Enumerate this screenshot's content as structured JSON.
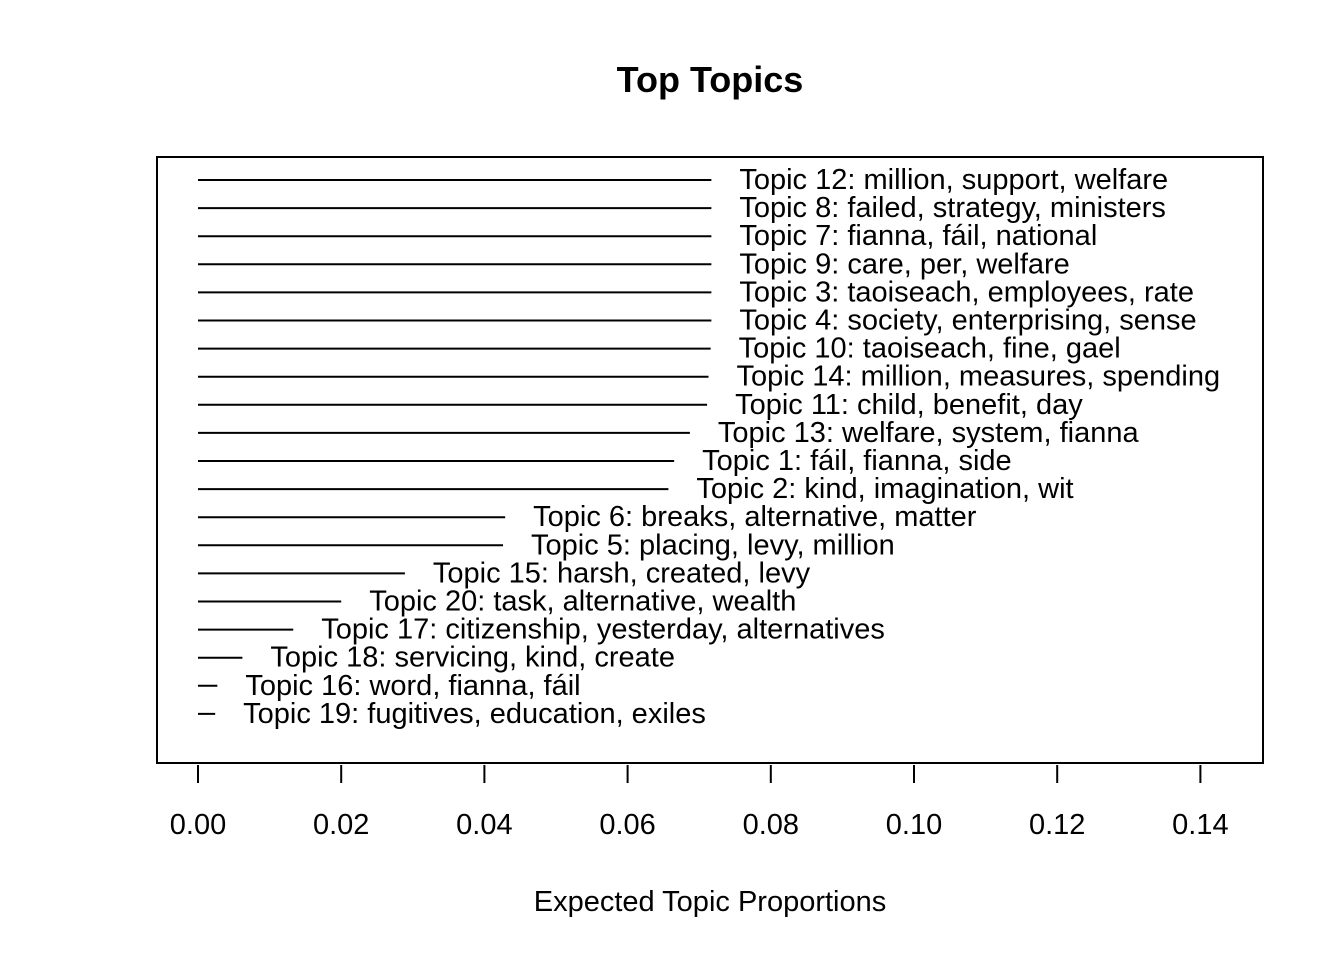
{
  "chart_data": {
    "type": "bar",
    "style": "horizontal segments with text labels",
    "title": "Top Topics",
    "xlabel": "Expected Topic Proportions",
    "xlim": [
      0.0,
      0.148
    ],
    "xticks": [
      "0.00",
      "0.02",
      "0.04",
      "0.06",
      "0.08",
      "0.10",
      "0.12",
      "0.14"
    ],
    "x_tick_values": [
      0.0,
      0.02,
      0.04,
      0.06,
      0.08,
      0.1,
      0.12,
      0.14
    ],
    "categories": [
      "Topic 12: million, support, welfare",
      "Topic 8: failed, strategy, ministers",
      "Topic 7: fianna, fáil, national",
      "Topic 9: care, per, welfare",
      "Topic 3: taoiseach, employees, rate",
      "Topic 4: society, enterprising, sense",
      "Topic 10: taoiseach, fine, gael",
      "Topic 14: million, measures, spending",
      "Topic 11: child, benefit, day",
      "Topic 13: welfare, system, fianna",
      "Topic 1: fáil, fianna, side",
      "Topic 2: kind, imagination, wit",
      "Topic 6: breaks, alternative, matter",
      "Topic 5: placing, levy, million",
      "Topic 15: harsh, created, levy",
      "Topic 20: task, alternative, wealth",
      "Topic 17: citizenship, yesterday, alternatives",
      "Topic 18: servicing, kind, create",
      "Topic 16: word, fianna, fáil",
      "Topic 19: fugitives, education, exiles"
    ],
    "values": [
      0.0717,
      0.0717,
      0.0717,
      0.0717,
      0.0717,
      0.0717,
      0.0716,
      0.0713,
      0.0711,
      0.0687,
      0.0665,
      0.0657,
      0.0429,
      0.0426,
      0.0289,
      0.02,
      0.0133,
      0.0062,
      0.0027,
      0.0024
    ],
    "line_color": "#000000",
    "grid": false,
    "legend": "none"
  }
}
